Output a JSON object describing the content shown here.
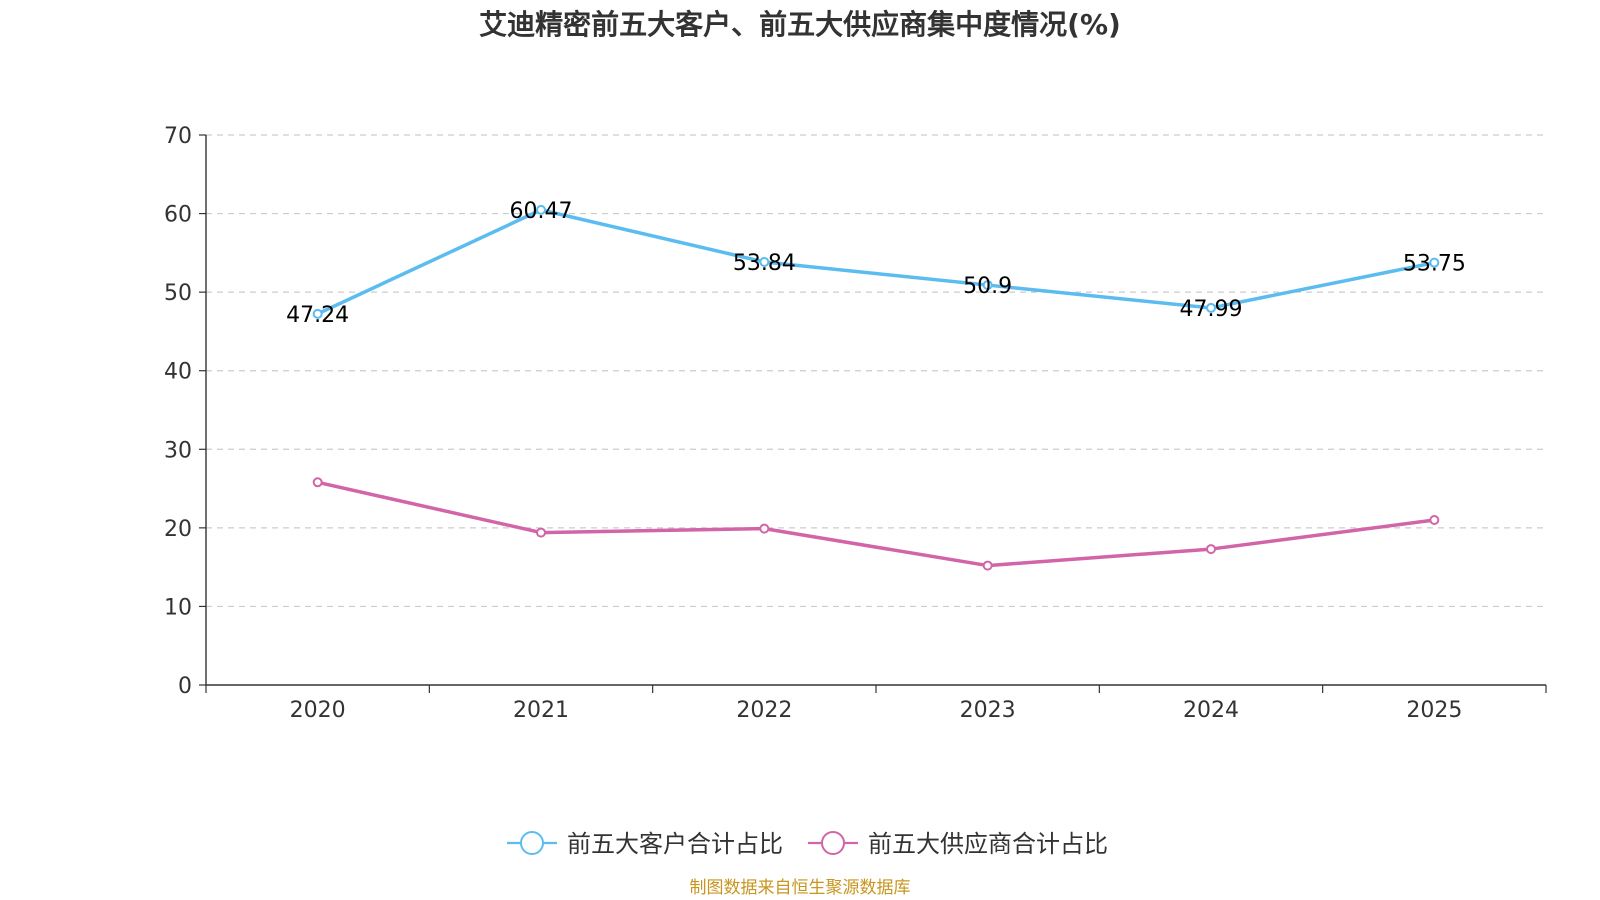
{
  "chart_data": {
    "type": "line",
    "title": "艾迪精密前五大客户、前五大供应商集中度情况(%)",
    "categories": [
      "2020",
      "2021",
      "2022",
      "2023",
      "2024",
      "2025"
    ],
    "ylim": [
      0,
      70
    ],
    "yticks": [
      "0",
      "10",
      "20",
      "30",
      "40",
      "50",
      "60",
      "70"
    ],
    "grid": true,
    "legend_position": "bottom",
    "series": [
      {
        "name": "前五大客户合计占比",
        "color": "#5bbcf0",
        "values": [
          47.24,
          60.47,
          53.84,
          50.9,
          47.99,
          53.75
        ],
        "labels": [
          "47.24",
          "60.47",
          "53.84",
          "50.9",
          "47.99",
          "53.75"
        ]
      },
      {
        "name": "前五大供应商合计占比",
        "color": "#d264a8",
        "values": [
          25.8,
          19.4,
          19.9,
          15.2,
          17.3,
          21.0
        ],
        "labels": []
      }
    ],
    "source": "制图数据来自恒生聚源数据库",
    "source_color": "#c8961e"
  }
}
